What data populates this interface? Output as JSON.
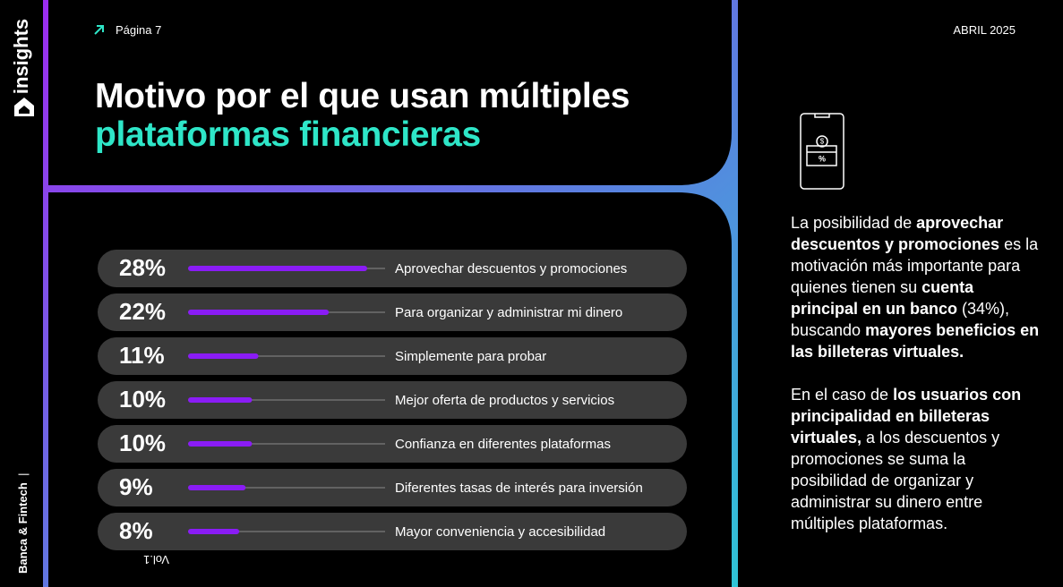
{
  "header": {
    "page": "Página 7",
    "date": "ABRIL 2025",
    "brand": "insights",
    "section": "Banca & Fintech",
    "volume": "Vol.1"
  },
  "title_lines": [
    "Motivo por el que usan múltiples",
    "plataformas financieras"
  ],
  "chart_data": {
    "type": "bar",
    "categories": [
      "Aprovechar descuentos y promociones",
      "Para organizar y administrar mi dinero",
      "Simplemente para probar",
      "Mejor oferta de productos y servicios",
      "Confianza en diferentes plataformas",
      "Diferentes  tasas de interés para inversión",
      "Mayor conveniencia y accesibilidad"
    ],
    "values": [
      28,
      22,
      11,
      10,
      10,
      9,
      8
    ],
    "value_labels": [
      "28%",
      "22%",
      "11%",
      "10%",
      "10%",
      "9%",
      "8%"
    ],
    "color": "#8a1cf5"
  },
  "paragraphs": [
    [
      {
        "text": "La posibilidad de "
      },
      {
        "text": "aprovechar descuentos y promociones",
        "bold": true
      },
      {
        "text": " es la motivación más importante para quienes tienen su "
      },
      {
        "text": "cuenta principal en un banco",
        "bold": true
      },
      {
        "text": " (34%), buscando "
      },
      {
        "text": "mayores beneficios en las billeteras virtuales.",
        "bold": true
      }
    ],
    [
      {
        "text": "En el caso de "
      },
      {
        "text": "los usuarios con principalidad en billeteras virtuales,",
        "bold": true
      },
      {
        "text": " a los descuentos y promociones se suma la posibilidad de organizar y administrar su dinero entre múltiples plataformas."
      }
    ]
  ]
}
